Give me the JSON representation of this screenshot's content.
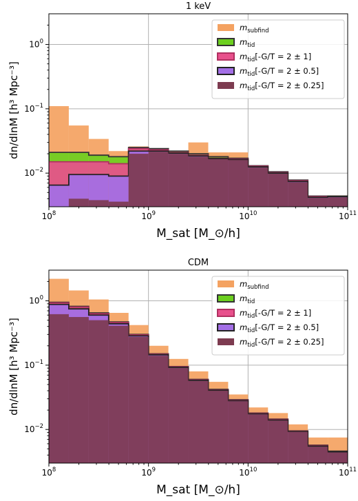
{
  "chart_data": [
    {
      "type": "histogram",
      "title": "1 keV",
      "xlabel": "M_sat [M_⊙/h]",
      "ylabel": "dn/dlnM [h³ Mpc⁻³]",
      "xscale": "log",
      "yscale": "log",
      "xlim": [
        100000000.0,
        100000000000.0
      ],
      "ylim": [
        0.003,
        3
      ],
      "grid": true,
      "legend_position": "top-right",
      "bin_edges_log10": [
        8.0,
        8.2,
        8.4,
        8.6,
        8.8,
        9.0,
        9.2,
        9.4,
        9.6,
        9.8,
        10.0,
        10.2,
        10.4,
        10.6,
        10.8,
        11.0
      ],
      "series": [
        {
          "name": "m_subfind",
          "label_main": "m",
          "label_sub": "subfind",
          "label_suffix": "",
          "color": "#f4a261",
          "edge": "none",
          "values": [
            0.11,
            0.055,
            0.034,
            0.022,
            0.026,
            0.024,
            0.022,
            0.03,
            0.021,
            0.021,
            0.013,
            0.01,
            0.0072,
            0.0033,
            0.0045
          ]
        },
        {
          "name": "m_tid",
          "label_main": "m",
          "label_sub": "tid",
          "label_suffix": "",
          "color": "#6ccf1f",
          "edge": "#333333",
          "values": [
            0.021,
            0.021,
            0.019,
            0.018,
            0.025,
            0.024,
            0.022,
            0.02,
            0.018,
            0.017,
            0.013,
            0.0105,
            0.0078,
            0.0044,
            0.0044
          ]
        },
        {
          "name": "m_tid[-G/T = 2 ± 1]",
          "label_main": "m",
          "label_sub": "tid",
          "label_suffix": "[-G/T = 2 ± 1]",
          "color": "#e8508c",
          "edge": "#b03060",
          "values": [
            0.015,
            0.015,
            0.015,
            0.014,
            0.024,
            0.023,
            0.021,
            0.019,
            0.017,
            0.0165,
            0.0128,
            0.0102,
            0.0076,
            0.0043,
            0.0043
          ]
        },
        {
          "name": "m_tid[-G/T = 2 ± 0.5]",
          "label_main": "m",
          "label_sub": "tid",
          "label_suffix": "[-G/T = 2 ± 0.5]",
          "color": "#a36fe6",
          "edge": "#222222",
          "values": [
            0.0065,
            0.0095,
            0.0095,
            0.009,
            0.022,
            0.022,
            0.0205,
            0.0185,
            0.0168,
            0.0162,
            0.0125,
            0.01,
            0.0074,
            0.0042,
            0.0043
          ]
        },
        {
          "name": "m_tid[-G/T = 2 ± 0.25]",
          "label_main": "m",
          "label_sub": "tid",
          "label_suffix": "[-G/T = 2 ± 0.25]",
          "color": "#7d3b50",
          "edge": "none",
          "values": [
            0.003,
            0.004,
            0.0038,
            0.0036,
            0.02,
            0.0215,
            0.02,
            0.018,
            0.0165,
            0.016,
            0.0122,
            0.0098,
            0.0072,
            0.0041,
            0.0042
          ]
        }
      ],
      "x_ticks": [
        {
          "value": 100000000.0,
          "mant": "10",
          "exp": "8"
        },
        {
          "value": 1000000000.0,
          "mant": "10",
          "exp": "9"
        },
        {
          "value": 10000000000.0,
          "mant": "10",
          "exp": "10"
        },
        {
          "value": 100000000000.0,
          "mant": "10",
          "exp": "11"
        }
      ],
      "y_ticks": [
        {
          "value": 0.01,
          "mant": "10",
          "exp": "−2"
        },
        {
          "value": 0.1,
          "mant": "10",
          "exp": "−1"
        },
        {
          "value": 1,
          "mant": "10",
          "exp": "0"
        }
      ]
    },
    {
      "type": "histogram",
      "title": "CDM",
      "xlabel": "M_sat [M_⊙/h]",
      "ylabel": "dn/dlnM [h³ Mpc⁻³]",
      "xscale": "log",
      "yscale": "log",
      "xlim": [
        100000000.0,
        100000000000.0
      ],
      "ylim": [
        0.003,
        3
      ],
      "grid": true,
      "legend_position": "top-right",
      "bin_edges_log10": [
        8.0,
        8.2,
        8.4,
        8.6,
        8.8,
        9.0,
        9.2,
        9.4,
        9.6,
        9.8,
        10.0,
        10.2,
        10.4,
        10.6,
        10.8,
        11.0
      ],
      "series": [
        {
          "name": "m_subfind",
          "label_main": "m",
          "label_sub": "subfind",
          "label_suffix": "",
          "color": "#f4a261",
          "edge": "none",
          "values": [
            2.2,
            1.45,
            1.05,
            0.65,
            0.42,
            0.2,
            0.125,
            0.08,
            0.055,
            0.035,
            0.022,
            0.018,
            0.012,
            0.0075,
            0.0075
          ]
        },
        {
          "name": "m_tid",
          "label_main": "m",
          "label_sub": "tid",
          "label_suffix": "",
          "color": "#6ccf1f",
          "edge": "#333333",
          "values": [
            0.95,
            0.82,
            0.65,
            0.47,
            0.3,
            0.15,
            0.095,
            0.06,
            0.042,
            0.029,
            0.018,
            0.0145,
            0.0095,
            0.0057,
            0.0046
          ]
        },
        {
          "name": "m_tid[-G/T = 2 ± 1]",
          "label_main": "m",
          "label_sub": "tid",
          "label_suffix": "[-G/T = 2 ± 1]",
          "color": "#e8508c",
          "edge": "#b03060",
          "values": [
            0.93,
            0.8,
            0.63,
            0.46,
            0.295,
            0.148,
            0.094,
            0.059,
            0.041,
            0.0285,
            0.0178,
            0.0143,
            0.0094,
            0.0056,
            0.0045
          ]
        },
        {
          "name": "m_tid[-G/T = 2 ± 0.5]",
          "label_main": "m",
          "label_sub": "tid",
          "label_suffix": "[-G/T = 2 ± 0.5]",
          "color": "#a36fe6",
          "edge": "#222222",
          "values": [
            0.88,
            0.75,
            0.6,
            0.44,
            0.285,
            0.145,
            0.092,
            0.058,
            0.0405,
            0.028,
            0.0175,
            0.014,
            0.0093,
            0.0055,
            0.0045
          ]
        },
        {
          "name": "m_tid[-G/T = 2 ± 0.25]",
          "label_main": "m",
          "label_sub": "tid",
          "label_suffix": "[-G/T = 2 ± 0.25]",
          "color": "#7d3b50",
          "edge": "none",
          "values": [
            0.62,
            0.56,
            0.5,
            0.41,
            0.275,
            0.14,
            0.09,
            0.057,
            0.04,
            0.0275,
            0.0172,
            0.0138,
            0.0092,
            0.0054,
            0.0044
          ]
        }
      ],
      "x_ticks": [
        {
          "value": 100000000.0,
          "mant": "10",
          "exp": "8"
        },
        {
          "value": 1000000000.0,
          "mant": "10",
          "exp": "9"
        },
        {
          "value": 10000000000.0,
          "mant": "10",
          "exp": "10"
        },
        {
          "value": 100000000000.0,
          "mant": "10",
          "exp": "11"
        }
      ],
      "y_ticks": [
        {
          "value": 0.01,
          "mant": "10",
          "exp": "−2"
        },
        {
          "value": 0.1,
          "mant": "10",
          "exp": "−1"
        },
        {
          "value": 1,
          "mant": "10",
          "exp": "0"
        }
      ]
    }
  ]
}
